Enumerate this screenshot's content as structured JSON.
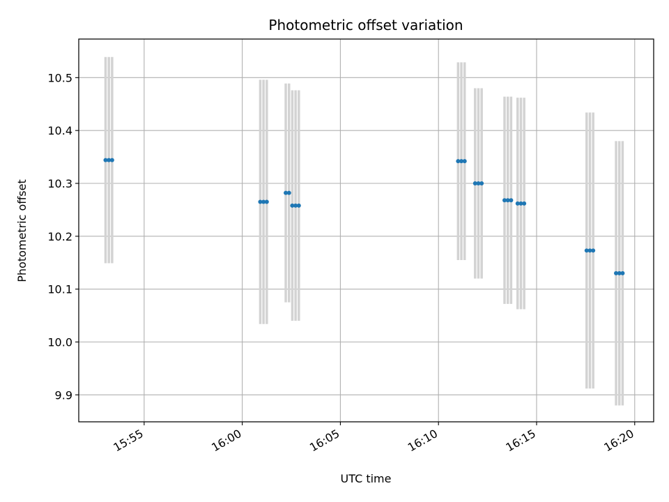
{
  "chart_data": {
    "type": "scatter",
    "title": "Photometric offset variation",
    "xlabel": "UTC time",
    "ylabel": "Photometric offset",
    "x_ticks": [
      "15:55",
      "16:00",
      "16:05",
      "16:10",
      "16:15",
      "16:20"
    ],
    "y_ticks": [
      "9.9",
      "10.0",
      "10.1",
      "10.2",
      "10.3",
      "10.4",
      "10.5"
    ],
    "xlim": [
      "15:51:40",
      "16:20:58"
    ],
    "ylim": [
      9.849,
      10.573
    ],
    "grid": true,
    "colors": {
      "marker": "#1f77b4",
      "errorbar": "#d3d3d3",
      "grid": "#b0b0b0"
    },
    "series": [
      {
        "x": [
          "15:53:02",
          "15:53:12",
          "15:53:22",
          "16:00:55",
          "16:01:05",
          "16:01:15",
          "16:02:13",
          "16:02:23",
          "16:02:33",
          "16:02:43",
          "16:02:53",
          "16:11:00",
          "16:11:10",
          "16:11:20",
          "16:11:52",
          "16:12:02",
          "16:12:12",
          "16:13:22",
          "16:13:32",
          "16:13:42",
          "16:14:02",
          "16:14:12",
          "16:14:22",
          "16:17:33",
          "16:17:43",
          "16:17:53",
          "16:19:03",
          "16:19:13",
          "16:19:23"
        ],
        "y": [
          10.344,
          10.344,
          10.344,
          10.265,
          10.265,
          10.265,
          10.282,
          10.282,
          10.258,
          10.258,
          10.258,
          10.342,
          10.342,
          10.342,
          10.3,
          10.3,
          10.3,
          10.268,
          10.268,
          10.268,
          10.262,
          10.262,
          10.262,
          10.173,
          10.173,
          10.173,
          10.13,
          10.13,
          10.13
        ],
        "err": [
          0.195,
          0.195,
          0.195,
          0.231,
          0.231,
          0.231,
          0.207,
          0.207,
          0.218,
          0.218,
          0.218,
          0.187,
          0.187,
          0.187,
          0.18,
          0.18,
          0.18,
          0.196,
          0.196,
          0.196,
          0.2,
          0.2,
          0.2,
          0.261,
          0.261,
          0.261,
          0.25,
          0.25,
          0.25
        ]
      }
    ]
  }
}
